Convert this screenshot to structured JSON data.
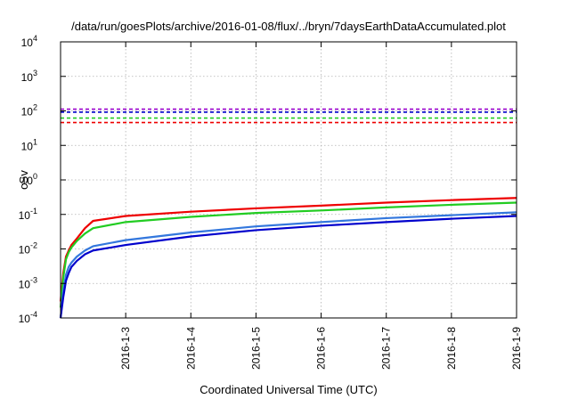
{
  "chart_data": {
    "type": "line",
    "title": "/data/run/goesPlots/archive/2016-01-08/flux/../bryn/7daysEarthDataAccumulated.plot",
    "xlabel": "Coordinated Universal Time (UTC)",
    "ylabel": "cSv",
    "x_range": [
      "2016-01-02",
      "2016-01-09"
    ],
    "y_scale": "log",
    "ylim": [
      0.0001,
      10000
    ],
    "grid": true,
    "x_ticks": [
      {
        "date": "2016-01-03",
        "label": "2016-1-3"
      },
      {
        "date": "2016-01-04",
        "label": "2016-1-4"
      },
      {
        "date": "2016-01-05",
        "label": "2016-1-5"
      },
      {
        "date": "2016-01-06",
        "label": "2016-1-6"
      },
      {
        "date": "2016-01-07",
        "label": "2016-1-7"
      },
      {
        "date": "2016-01-08",
        "label": "2016-1-8"
      },
      {
        "date": "2016-01-09",
        "label": "2016-1-9"
      }
    ],
    "y_ticks": [
      {
        "value": 0.0001,
        "base": "10",
        "exp": "-4"
      },
      {
        "value": 0.001,
        "base": "10",
        "exp": "-3"
      },
      {
        "value": 0.01,
        "base": "10",
        "exp": "-2"
      },
      {
        "value": 0.1,
        "base": "10",
        "exp": "-1"
      },
      {
        "value": 1,
        "base": "10",
        "exp": "0"
      },
      {
        "value": 10,
        "base": "10",
        "exp": "1"
      },
      {
        "value": 100,
        "base": "10",
        "exp": "2"
      },
      {
        "value": 1000,
        "base": "10",
        "exp": "3"
      },
      {
        "value": 10000,
        "base": "10",
        "exp": "4"
      }
    ],
    "thresholds": [
      {
        "value": 112,
        "color": "#9900cc",
        "style": "dashed"
      },
      {
        "value": 92,
        "color": "#0000cc",
        "style": "dashed"
      },
      {
        "value": 62,
        "color": "#22cc22",
        "style": "dashed"
      },
      {
        "value": 46,
        "color": "#ee0000",
        "style": "dashed"
      }
    ],
    "series": [
      {
        "color": "#ee0000",
        "x": [
          "2016-01-02 00:00",
          "2016-01-02 01:00",
          "2016-01-02 02:00",
          "2016-01-02 03:00",
          "2016-01-02 04:00",
          "2016-01-02 06:00",
          "2016-01-02 09:00",
          "2016-01-02 12:00",
          "2016-01-03 00:00",
          "2016-01-04 00:00",
          "2016-01-05 00:00",
          "2016-01-06 00:00",
          "2016-01-07 00:00",
          "2016-01-08 00:00",
          "2016-01-09 00:00"
        ],
        "y": [
          0.0003,
          0.002,
          0.006,
          0.009,
          0.013,
          0.02,
          0.04,
          0.065,
          0.09,
          0.12,
          0.15,
          0.18,
          0.22,
          0.26,
          0.3
        ]
      },
      {
        "color": "#22cc22",
        "x": [
          "2016-01-02 00:00",
          "2016-01-02 01:00",
          "2016-01-02 02:00",
          "2016-01-02 03:00",
          "2016-01-02 04:00",
          "2016-01-02 06:00",
          "2016-01-02 09:00",
          "2016-01-02 12:00",
          "2016-01-03 00:00",
          "2016-01-04 00:00",
          "2016-01-05 00:00",
          "2016-01-06 00:00",
          "2016-01-07 00:00",
          "2016-01-08 00:00",
          "2016-01-09 00:00"
        ],
        "y": [
          0.0002,
          0.0015,
          0.005,
          0.008,
          0.011,
          0.017,
          0.028,
          0.04,
          0.06,
          0.085,
          0.11,
          0.13,
          0.16,
          0.19,
          0.22
        ]
      },
      {
        "color": "#3377dd",
        "x": [
          "2016-01-02 00:00",
          "2016-01-02 01:00",
          "2016-01-02 02:00",
          "2016-01-02 03:00",
          "2016-01-02 04:00",
          "2016-01-02 06:00",
          "2016-01-02 09:00",
          "2016-01-02 12:00",
          "2016-01-03 00:00",
          "2016-01-04 00:00",
          "2016-01-05 00:00",
          "2016-01-06 00:00",
          "2016-01-07 00:00",
          "2016-01-08 00:00",
          "2016-01-09 00:00"
        ],
        "y": [
          0.0001,
          0.0006,
          0.0018,
          0.003,
          0.004,
          0.006,
          0.009,
          0.012,
          0.018,
          0.03,
          0.045,
          0.06,
          0.078,
          0.095,
          0.115
        ]
      },
      {
        "color": "#0000cc",
        "x": [
          "2016-01-02 00:00",
          "2016-01-02 01:00",
          "2016-01-02 02:00",
          "2016-01-02 03:00",
          "2016-01-02 04:00",
          "2016-01-02 06:00",
          "2016-01-02 09:00",
          "2016-01-02 12:00",
          "2016-01-03 00:00",
          "2016-01-04 00:00",
          "2016-01-05 00:00",
          "2016-01-06 00:00",
          "2016-01-07 00:00",
          "2016-01-08 00:00",
          "2016-01-09 00:00"
        ],
        "y": [
          0.0001,
          0.0004,
          0.0012,
          0.002,
          0.003,
          0.0045,
          0.007,
          0.009,
          0.013,
          0.023,
          0.035,
          0.047,
          0.06,
          0.075,
          0.09
        ]
      }
    ]
  }
}
